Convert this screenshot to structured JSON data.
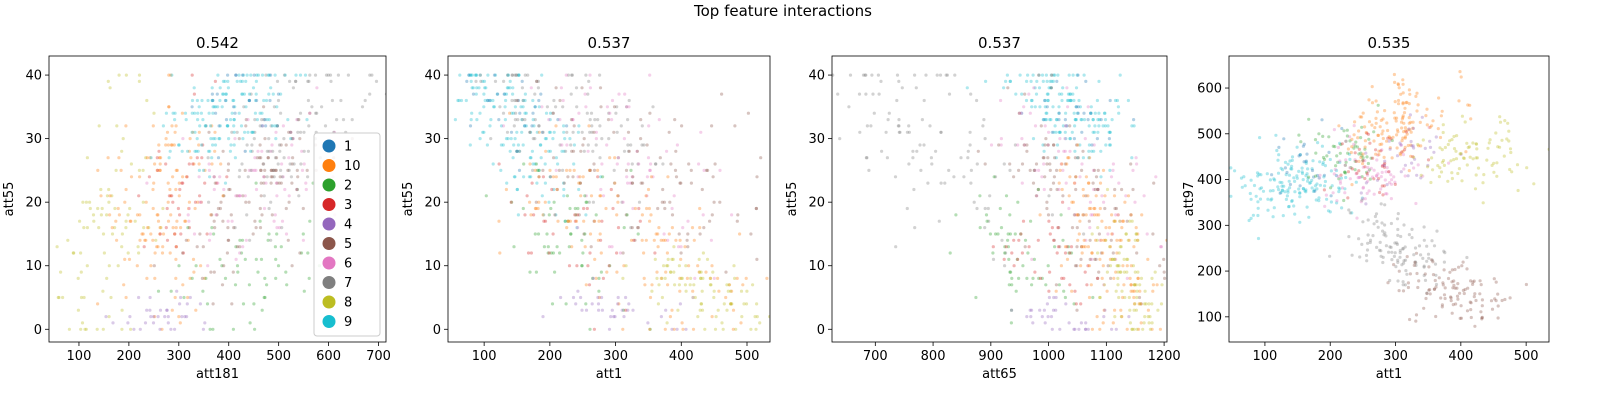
{
  "figure": {
    "suptitle": "Top feature interactions"
  },
  "colors": {
    "1": "#1f77b4",
    "10": "#ff7f0e",
    "2": "#2ca02c",
    "3": "#d62728",
    "4": "#9467bd",
    "5": "#8c564b",
    "6": "#e377c2",
    "7": "#7f7f7f",
    "8": "#bcbd22",
    "9": "#17becf"
  },
  "chart_data": [
    {
      "type": "scatter",
      "title": "0.542",
      "xlabel": "att181",
      "ylabel": "att55",
      "xlim": [
        40,
        715
      ],
      "ylim": [
        -2,
        43
      ],
      "xticks": [
        100,
        200,
        300,
        400,
        500,
        600,
        700
      ],
      "yticks": [
        0,
        10,
        20,
        30,
        40
      ],
      "legend": {
        "placement": "lower-right",
        "entries": [
          "1",
          "10",
          "2",
          "3",
          "4",
          "5",
          "6",
          "7",
          "8",
          "9"
        ]
      },
      "series": [
        {
          "name": "8",
          "cx": [
            110,
            205
          ],
          "cy": [
            2,
            30
          ],
          "sx": 45,
          "sy": 10,
          "n": 90
        },
        {
          "name": "10",
          "cx": [
            220,
            330
          ],
          "cy": [
            10,
            30
          ],
          "sx": 50,
          "sy": 7,
          "n": 140
        },
        {
          "name": "3",
          "cx": [
            260,
            330
          ],
          "cy": [
            15,
            30
          ],
          "sx": 35,
          "sy": 6,
          "n": 40
        },
        {
          "name": "2",
          "cx": [
            350,
            560
          ],
          "cy": [
            6,
            14
          ],
          "sx": 45,
          "sy": 5,
          "n": 60
        },
        {
          "name": "4",
          "cx": [
            200,
            320
          ],
          "cy": [
            1,
            3
          ],
          "sx": 40,
          "sy": 1.5,
          "n": 35
        },
        {
          "name": "5",
          "cx": [
            350,
            560
          ],
          "cy": [
            15,
            28
          ],
          "sx": 45,
          "sy": 6,
          "n": 110
        },
        {
          "name": "6",
          "cx": [
            330,
            560
          ],
          "cy": [
            18,
            30
          ],
          "sx": 50,
          "sy": 6,
          "n": 80
        },
        {
          "name": "7",
          "cx": [
            430,
            650
          ],
          "cy": [
            25,
            40
          ],
          "sx": 50,
          "sy": 6,
          "n": 110
        },
        {
          "name": "9",
          "cx": [
            330,
            500
          ],
          "cy": [
            30,
            40
          ],
          "sx": 45,
          "sy": 4,
          "n": 150
        },
        {
          "name": "1",
          "cx": [
            360,
            480
          ],
          "cy": [
            32,
            39
          ],
          "sx": 30,
          "sy": 3,
          "n": 25
        }
      ]
    },
    {
      "type": "scatter",
      "title": "0.537",
      "xlabel": "att1",
      "ylabel": "att55",
      "xlim": [
        45,
        535
      ],
      "ylim": [
        -2,
        43
      ],
      "xticks": [
        100,
        200,
        300,
        400,
        500
      ],
      "yticks": [
        0,
        10,
        20,
        30,
        40
      ],
      "series": [
        {
          "name": "9",
          "cx": [
            80,
            220
          ],
          "cy": [
            40,
            24
          ],
          "sx": 30,
          "sy": 4,
          "n": 160
        },
        {
          "name": "1",
          "cx": [
            120,
            180
          ],
          "cy": [
            38,
            30
          ],
          "sx": 25,
          "sy": 3,
          "n": 25
        },
        {
          "name": "7",
          "cx": [
            130,
            340
          ],
          "cy": [
            40,
            25
          ],
          "sx": 45,
          "sy": 5,
          "n": 110
        },
        {
          "name": "6",
          "cx": [
            200,
            400
          ],
          "cy": [
            35,
            20
          ],
          "sx": 45,
          "sy": 6,
          "n": 80
        },
        {
          "name": "5",
          "cx": [
            230,
            480
          ],
          "cy": [
            30,
            18
          ],
          "sx": 50,
          "sy": 6,
          "n": 110
        },
        {
          "name": "2",
          "cx": [
            170,
            300
          ],
          "cy": [
            20,
            8
          ],
          "sx": 40,
          "sy": 5,
          "n": 60
        },
        {
          "name": "3",
          "cx": [
            190,
            330
          ],
          "cy": [
            20,
            10
          ],
          "sx": 40,
          "sy": 5,
          "n": 40
        },
        {
          "name": "10",
          "cx": [
            200,
            450
          ],
          "cy": [
            24,
            5
          ],
          "sx": 50,
          "sy": 5,
          "n": 140
        },
        {
          "name": "4",
          "cx": [
            240,
            360
          ],
          "cy": [
            5,
            1
          ],
          "sx": 40,
          "sy": 1.5,
          "n": 35
        },
        {
          "name": "8",
          "cx": [
            370,
            510
          ],
          "cy": [
            10,
            1
          ],
          "sx": 35,
          "sy": 2.5,
          "n": 90
        }
      ]
    },
    {
      "type": "scatter",
      "title": "0.537",
      "xlabel": "att65",
      "ylabel": "att55",
      "xlim": [
        625,
        1205
      ],
      "ylim": [
        -2,
        43
      ],
      "xticks": [
        700,
        800,
        900,
        1000,
        1100,
        1200
      ],
      "yticks": [
        0,
        10,
        20,
        30,
        40
      ],
      "series": [
        {
          "name": "7",
          "cx": [
            680,
            900
          ],
          "cy": [
            40,
            20
          ],
          "sx": 60,
          "sy": 6,
          "n": 110
        },
        {
          "name": "9",
          "cx": [
            950,
            1090
          ],
          "cy": [
            40,
            30
          ],
          "sx": 45,
          "sy": 3,
          "n": 160
        },
        {
          "name": "1",
          "cx": [
            1000,
            1090
          ],
          "cy": [
            38,
            30
          ],
          "sx": 35,
          "sy": 3,
          "n": 25
        },
        {
          "name": "6",
          "cx": [
            950,
            1120
          ],
          "cy": [
            32,
            18
          ],
          "sx": 45,
          "sy": 6,
          "n": 80
        },
        {
          "name": "5",
          "cx": [
            960,
            1150
          ],
          "cy": [
            30,
            12
          ],
          "sx": 45,
          "sy": 6,
          "n": 110
        },
        {
          "name": "2",
          "cx": [
            900,
            1000
          ],
          "cy": [
            15,
            8
          ],
          "sx": 35,
          "sy": 5,
          "n": 60
        },
        {
          "name": "3",
          "cx": [
            940,
            1060
          ],
          "cy": [
            15,
            8
          ],
          "sx": 35,
          "sy": 5,
          "n": 40
        },
        {
          "name": "10",
          "cx": [
            1040,
            1160
          ],
          "cy": [
            22,
            4
          ],
          "sx": 35,
          "sy": 5,
          "n": 140
        },
        {
          "name": "4",
          "cx": [
            970,
            1090
          ],
          "cy": [
            3,
            1
          ],
          "sx": 35,
          "sy": 1.5,
          "n": 35
        },
        {
          "name": "8",
          "cx": [
            1110,
            1170
          ],
          "cy": [
            15,
            1
          ],
          "sx": 25,
          "sy": 3,
          "n": 90
        }
      ]
    },
    {
      "type": "scatter",
      "title": "0.535",
      "xlabel": "att1",
      "ylabel": "att97",
      "xlim": [
        45,
        535
      ],
      "ylim": [
        45,
        670
      ],
      "xticks": [
        100,
        200,
        300,
        400,
        500
      ],
      "yticks": [
        100,
        200,
        300,
        400,
        500,
        600
      ],
      "series": [
        {
          "name": "9",
          "cx": [
            90,
            200
          ],
          "cy": [
            380,
            400
          ],
          "sx": 35,
          "sy": 40,
          "n": 160
        },
        {
          "name": "1",
          "cx": [
            140,
            200
          ],
          "cy": [
            420,
            460
          ],
          "sx": 30,
          "sy": 30,
          "n": 25
        },
        {
          "name": "2",
          "cx": [
            200,
            250
          ],
          "cy": [
            430,
            470
          ],
          "sx": 30,
          "sy": 35,
          "n": 60
        },
        {
          "name": "6",
          "cx": [
            220,
            300
          ],
          "cy": [
            380,
            430
          ],
          "sx": 35,
          "sy": 40,
          "n": 80
        },
        {
          "name": "10",
          "cx": [
            260,
            340
          ],
          "cy": [
            480,
            560
          ],
          "sx": 35,
          "sy": 40,
          "n": 140
        },
        {
          "name": "3",
          "cx": [
            230,
            300
          ],
          "cy": [
            400,
            460
          ],
          "sx": 30,
          "sy": 35,
          "n": 40
        },
        {
          "name": "4",
          "cx": [
            290,
            350
          ],
          "cy": [
            420,
            480
          ],
          "sx": 30,
          "sy": 35,
          "n": 35
        },
        {
          "name": "8",
          "cx": [
            360,
            470
          ],
          "cy": [
            420,
            480
          ],
          "sx": 35,
          "sy": 40,
          "n": 90
        },
        {
          "name": "7",
          "cx": [
            260,
            340
          ],
          "cy": [
            300,
            200
          ],
          "sx": 30,
          "sy": 35,
          "n": 110
        },
        {
          "name": "5",
          "cx": [
            350,
            440
          ],
          "cy": [
            190,
            120
          ],
          "sx": 35,
          "sy": 30,
          "n": 110
        }
      ]
    }
  ]
}
